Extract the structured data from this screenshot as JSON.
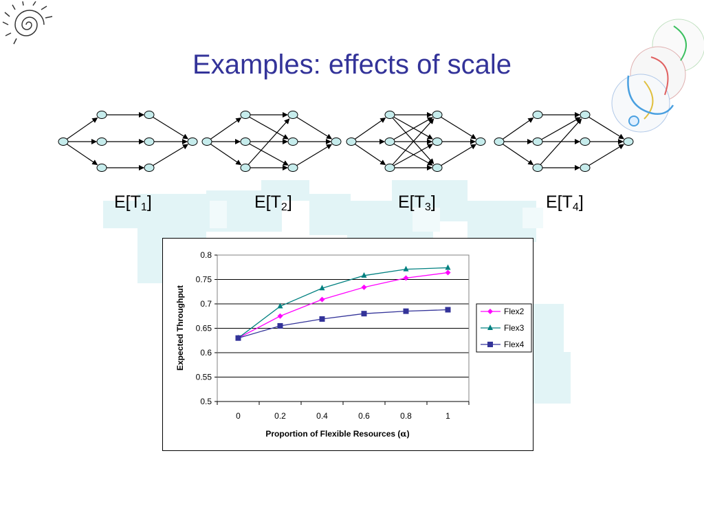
{
  "slide": {
    "title": "Examples: effects of scale",
    "network_labels": [
      {
        "main": "E[T",
        "sub": "1",
        "end": "]"
      },
      {
        "main": "E[T",
        "sub": "2",
        "end": "]"
      },
      {
        "main": "E[T",
        "sub": "3",
        "end": "]"
      },
      {
        "main": "E[T",
        "sub": "4",
        "end": "]"
      }
    ],
    "icons": [
      "nautilus-shell-logo",
      "overlapping-circles-decoration"
    ],
    "colors": {
      "title": "#333399",
      "node_fill": "#c6ecec",
      "mosaic": "#dff3f5"
    }
  },
  "chart_data": {
    "type": "line",
    "xlabel": "Proportion of Flexible Resources (",
    "xlabel_symbol": "α",
    "xlabel_end": ")",
    "ylabel": "Expected Throughput",
    "categories": [
      "0",
      "0.2",
      "0.4",
      "0.6",
      "0.8",
      "1"
    ],
    "x": [
      0,
      0.2,
      0.4,
      0.6,
      0.8,
      1
    ],
    "ylim": [
      0.5,
      0.8
    ],
    "yticks": [
      "0.5",
      "0.55",
      "0.6",
      "0.65",
      "0.7",
      "0.75",
      "0.8"
    ],
    "grid": "horizontal",
    "legend_position": "right",
    "series": [
      {
        "name": "Flex2",
        "color": "#ff00ff",
        "marker": "diamond",
        "values": [
          0.63,
          0.675,
          0.709,
          0.734,
          0.753,
          0.764
        ]
      },
      {
        "name": "Flex3",
        "color": "#008080",
        "marker": "triangle",
        "values": [
          0.63,
          0.695,
          0.732,
          0.758,
          0.771,
          0.774
        ]
      },
      {
        "name": "Flex4",
        "color": "#333399",
        "marker": "square",
        "values": [
          0.63,
          0.655,
          0.669,
          0.68,
          0.685,
          0.688
        ]
      }
    ]
  }
}
